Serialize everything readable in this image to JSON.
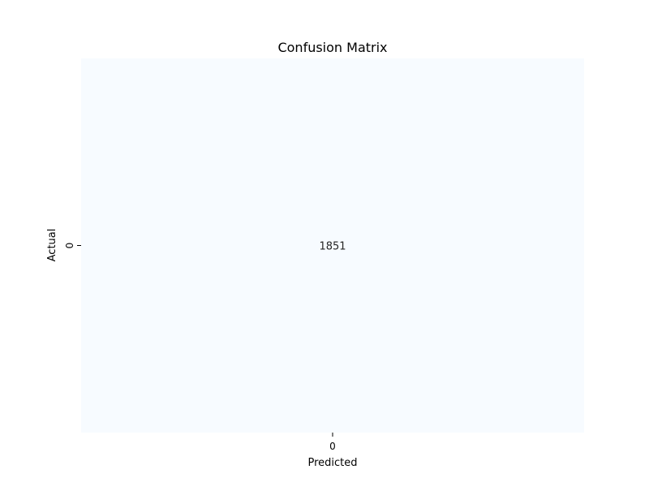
{
  "chart_data": {
    "type": "heatmap",
    "title": "Confusion Matrix",
    "xlabel": "Predicted",
    "ylabel": "Actual",
    "x_categories": [
      "0"
    ],
    "y_categories": [
      "0"
    ],
    "values": [
      [
        1851
      ]
    ],
    "colormap": "Blues",
    "colorbar": false,
    "cell_color": "#f7fbff",
    "annotation_color": "#262626"
  }
}
